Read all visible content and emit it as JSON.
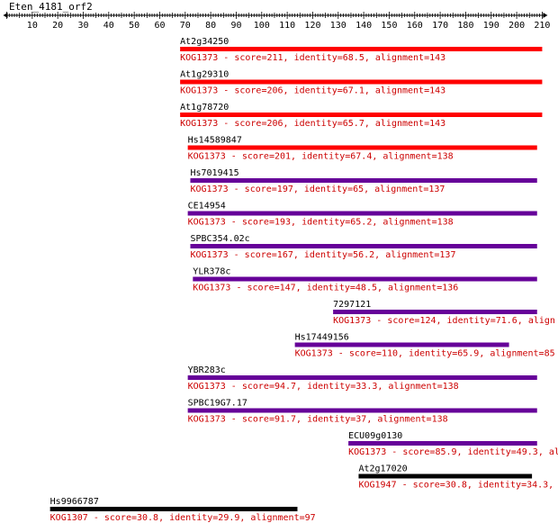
{
  "query": {
    "name": "Eten_4181_orf2",
    "axis_ticks": [
      10,
      20,
      30,
      40,
      50,
      60,
      70,
      80,
      90,
      100,
      110,
      120,
      130,
      140,
      150,
      160,
      170,
      180,
      190,
      200,
      210
    ],
    "axis_min": 0,
    "axis_max": 210
  },
  "colors": {
    "red": "#ff0000",
    "purple": "#660099",
    "black": "#000000",
    "text_red": "#cc0000"
  },
  "hits": [
    {
      "name": "At2g34250",
      "kog": "KOG1373",
      "score": "211",
      "identity": "68.5",
      "alignment": "143",
      "start": 68,
      "end": 210,
      "color": "red"
    },
    {
      "name": "At1g29310",
      "kog": "KOG1373",
      "score": "206",
      "identity": "67.1",
      "alignment": "143",
      "start": 68,
      "end": 210,
      "color": "red"
    },
    {
      "name": "At1g78720",
      "kog": "KOG1373",
      "score": "206",
      "identity": "65.7",
      "alignment": "143",
      "start": 68,
      "end": 210,
      "color": "red"
    },
    {
      "name": "Hs14589847",
      "kog": "KOG1373",
      "score": "201",
      "identity": "67.4",
      "alignment": "138",
      "start": 71,
      "end": 208,
      "color": "red"
    },
    {
      "name": "Hs7019415",
      "kog": "KOG1373",
      "score": "197",
      "identity": "65",
      "alignment": "137",
      "start": 72,
      "end": 208,
      "color": "purple"
    },
    {
      "name": "CE14954",
      "kog": "KOG1373",
      "score": "193",
      "identity": "65.2",
      "alignment": "138",
      "start": 71,
      "end": 208,
      "color": "purple"
    },
    {
      "name": "SPBC354.02c",
      "kog": "KOG1373",
      "score": "167",
      "identity": "56.2",
      "alignment": "137",
      "start": 72,
      "end": 208,
      "color": "purple"
    },
    {
      "name": "YLR378c",
      "kog": "KOG1373",
      "score": "147",
      "identity": "48.5",
      "alignment": "136",
      "start": 73,
      "end": 208,
      "color": "purple"
    },
    {
      "name": "7297121",
      "kog": "KOG1373",
      "score": "124",
      "identity": "71.6",
      "alignment": "",
      "start": 128,
      "end": 208,
      "color": "purple"
    },
    {
      "name": "Hs17449156",
      "kog": "KOG1373",
      "score": "110",
      "identity": "65.9",
      "alignment": "85",
      "start": 113,
      "end": 197,
      "color": "purple"
    },
    {
      "name": "YBR283c",
      "kog": "KOG1373",
      "score": "94.7",
      "identity": "33.3",
      "alignment": "138",
      "start": 71,
      "end": 208,
      "color": "purple"
    },
    {
      "name": "SPBC19G7.17",
      "kog": "KOG1373",
      "score": "91.7",
      "identity": "37",
      "alignment": "138",
      "start": 71,
      "end": 208,
      "color": "purple"
    },
    {
      "name": "ECU09g0130",
      "kog": "KOG1373",
      "score": "85.9",
      "identity": "49.3",
      "alignment": "",
      "start": 134,
      "end": 208,
      "color": "purple"
    },
    {
      "name": "At2g17020",
      "kog": "KOG1947",
      "score": "30.8",
      "identity": "34.3",
      "alignment": "",
      "start": 138,
      "end": 206,
      "color": "black"
    },
    {
      "name": "Hs9966787",
      "kog": "KOG1307",
      "score": "30.8",
      "identity": "29.9",
      "alignment": "97",
      "start": 17,
      "end": 114,
      "color": "black"
    }
  ]
}
